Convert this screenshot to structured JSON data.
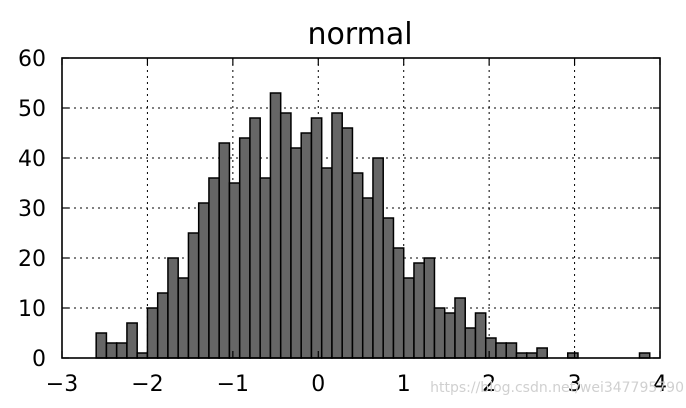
{
  "chart_data": {
    "type": "bar",
    "title": "normal",
    "xlabel": "",
    "ylabel": "",
    "xlim": [
      -3,
      4
    ],
    "ylim": [
      0,
      60
    ],
    "grid": true,
    "x_ticks": [
      -3,
      -2,
      -1,
      0,
      1,
      2,
      3,
      4
    ],
    "x_tick_labels": [
      "−3",
      "−2",
      "−1",
      "0",
      "1",
      "2",
      "3",
      "4"
    ],
    "y_ticks": [
      0,
      10,
      20,
      30,
      40,
      50,
      60
    ],
    "y_tick_labels": [
      "0",
      "10",
      "20",
      "30",
      "40",
      "50",
      "60"
    ],
    "bins": [
      {
        "x0": -2.6,
        "x1": -2.48,
        "value": 5
      },
      {
        "x0": -2.48,
        "x1": -2.36,
        "value": 3
      },
      {
        "x0": -2.36,
        "x1": -2.24,
        "value": 3
      },
      {
        "x0": -2.24,
        "x1": -2.12,
        "value": 7
      },
      {
        "x0": -2.12,
        "x1": -2.0,
        "value": 1
      },
      {
        "x0": -2.0,
        "x1": -1.88,
        "value": 10
      },
      {
        "x0": -1.88,
        "x1": -1.76,
        "value": 13
      },
      {
        "x0": -1.76,
        "x1": -1.64,
        "value": 20
      },
      {
        "x0": -1.64,
        "x1": -1.52,
        "value": 16
      },
      {
        "x0": -1.52,
        "x1": -1.4,
        "value": 25
      },
      {
        "x0": -1.4,
        "x1": -1.28,
        "value": 31
      },
      {
        "x0": -1.28,
        "x1": -1.16,
        "value": 36
      },
      {
        "x0": -1.16,
        "x1": -1.04,
        "value": 43
      },
      {
        "x0": -1.04,
        "x1": -0.92,
        "value": 35
      },
      {
        "x0": -0.92,
        "x1": -0.8,
        "value": 44
      },
      {
        "x0": -0.8,
        "x1": -0.68,
        "value": 48
      },
      {
        "x0": -0.68,
        "x1": -0.56,
        "value": 36
      },
      {
        "x0": -0.56,
        "x1": -0.44,
        "value": 53
      },
      {
        "x0": -0.44,
        "x1": -0.32,
        "value": 49
      },
      {
        "x0": -0.32,
        "x1": -0.2,
        "value": 42
      },
      {
        "x0": -0.2,
        "x1": -0.08,
        "value": 45
      },
      {
        "x0": -0.08,
        "x1": 0.04,
        "value": 48
      },
      {
        "x0": 0.04,
        "x1": 0.16,
        "value": 38
      },
      {
        "x0": 0.16,
        "x1": 0.28,
        "value": 49
      },
      {
        "x0": 0.28,
        "x1": 0.4,
        "value": 46
      },
      {
        "x0": 0.4,
        "x1": 0.52,
        "value": 37
      },
      {
        "x0": 0.52,
        "x1": 0.64,
        "value": 32
      },
      {
        "x0": 0.64,
        "x1": 0.76,
        "value": 40
      },
      {
        "x0": 0.76,
        "x1": 0.88,
        "value": 28
      },
      {
        "x0": 0.88,
        "x1": 1.0,
        "value": 22
      },
      {
        "x0": 1.0,
        "x1": 1.12,
        "value": 16
      },
      {
        "x0": 1.12,
        "x1": 1.24,
        "value": 19
      },
      {
        "x0": 1.24,
        "x1": 1.36,
        "value": 20
      },
      {
        "x0": 1.36,
        "x1": 1.48,
        "value": 10
      },
      {
        "x0": 1.48,
        "x1": 1.6,
        "value": 9
      },
      {
        "x0": 1.6,
        "x1": 1.72,
        "value": 12
      },
      {
        "x0": 1.72,
        "x1": 1.84,
        "value": 6
      },
      {
        "x0": 1.84,
        "x1": 1.96,
        "value": 9
      },
      {
        "x0": 1.96,
        "x1": 2.08,
        "value": 4
      },
      {
        "x0": 2.08,
        "x1": 2.2,
        "value": 3
      },
      {
        "x0": 2.2,
        "x1": 2.32,
        "value": 3
      },
      {
        "x0": 2.32,
        "x1": 2.44,
        "value": 1
      },
      {
        "x0": 2.44,
        "x1": 2.56,
        "value": 1
      },
      {
        "x0": 2.56,
        "x1": 2.68,
        "value": 2
      },
      {
        "x0": 2.92,
        "x1": 3.04,
        "value": 1
      },
      {
        "x0": 3.76,
        "x1": 3.88,
        "value": 1
      }
    ],
    "colors": {
      "bar_fill": "#666666",
      "bar_edge": "#000000"
    }
  },
  "watermark": "https://blog.csdn.net/wei347795790"
}
